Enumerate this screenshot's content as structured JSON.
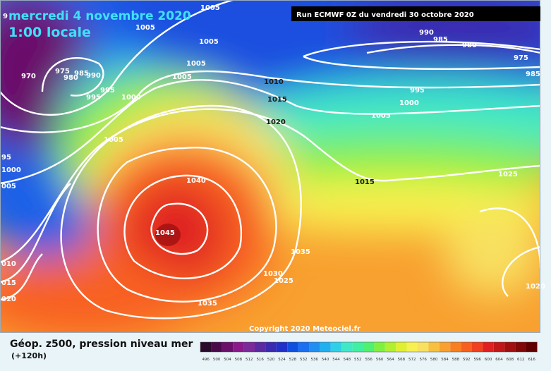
{
  "header": {
    "date": "mercredi 4 novembre 2020",
    "time": "1:00 locale",
    "run": "Run ECMWF 0Z du vendredi 30 octobre 2020",
    "copyright": "Copyright 2020 Meteociel.fr"
  },
  "footer": {
    "title": "Géop. z500, pression niveau mer",
    "lead": "(+120h)"
  },
  "isobars": [
    "1005",
    "1005",
    "1005",
    "1005",
    "970",
    "975",
    "980",
    "985",
    "990",
    "995",
    "995",
    "1000",
    "1010",
    "1015",
    "1020",
    "1005",
    "95",
    "1000",
    "005",
    "1040",
    "1045",
    "1035",
    "1030",
    "1025",
    "1035",
    "1015",
    "1025",
    "1020",
    "990",
    "985",
    "980",
    "975",
    "985",
    "995",
    "1000",
    "1005",
    "010",
    "015",
    "020",
    "1005",
    "9"
  ],
  "colorbar": {
    "ticks": [
      496,
      500,
      504,
      508,
      512,
      516,
      520,
      524,
      528,
      532,
      536,
      540,
      544,
      548,
      552,
      556,
      560,
      564,
      568,
      572,
      576,
      580,
      584,
      588,
      592,
      596,
      600,
      604,
      608,
      612,
      616
    ],
    "colors": [
      "#2a0a2a",
      "#4a0a4a",
      "#6a106a",
      "#8a1a8a",
      "#7a2a9a",
      "#5a2aa0",
      "#3a2ab0",
      "#2030c8",
      "#1050e0",
      "#1a70f0",
      "#2090f0",
      "#20b0f0",
      "#30d0e8",
      "#40e8c8",
      "#40f0a0",
      "#50f070",
      "#80f040",
      "#b0f030",
      "#e0f030",
      "#f8f050",
      "#f8e060",
      "#f8c040",
      "#f8a030",
      "#f88020",
      "#f86020",
      "#f04020",
      "#e02020",
      "#c01818",
      "#a01010",
      "#800808",
      "#600000"
    ]
  }
}
